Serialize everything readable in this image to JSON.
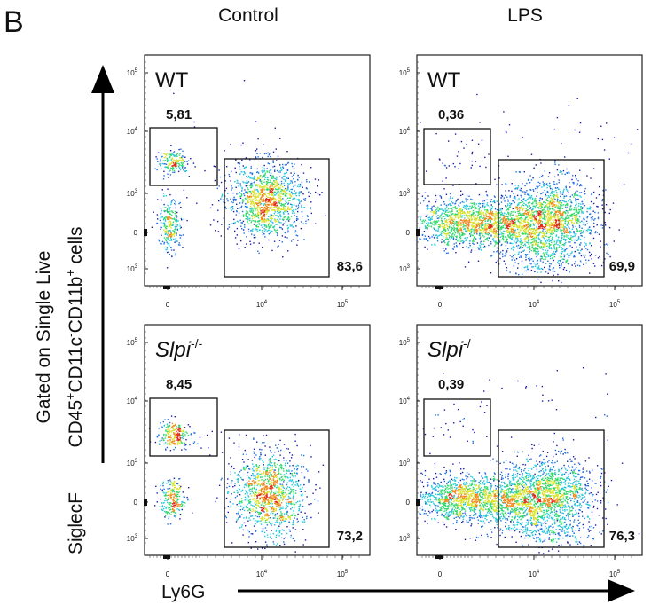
{
  "panel_letter": "B",
  "column_headers": [
    "Control",
    "LPS"
  ],
  "y_axis_label": {
    "line1": "Gated on Single Live",
    "line2_parts": [
      "CD45",
      "+",
      "CD11c",
      "-",
      "CD11b",
      "+",
      " cells"
    ],
    "marker": "SiglecF"
  },
  "x_axis_label": "Ly6G",
  "chart_data": {
    "type": "scatter",
    "subtype": "flow-cytometry-pseudocolor-dot-plot",
    "x_axis": {
      "label": "Ly6G",
      "scale": "biexponential",
      "ticks": [
        {
          "base": "0",
          "exp": ""
        },
        {
          "base": "10",
          "exp": "4"
        },
        {
          "base": "10",
          "exp": "5"
        }
      ]
    },
    "y_axis": {
      "label": "SiglecF",
      "scale": "biexponential",
      "ticks": [
        {
          "base": "10",
          "exp": "5"
        },
        {
          "base": "10",
          "exp": "4"
        },
        {
          "base": "10",
          "exp": "3"
        },
        {
          "base": "0",
          "exp": ""
        },
        {
          "base": "-10",
          "exp": "3"
        }
      ]
    },
    "color_scale": [
      "#1a1aa8",
      "#1e6fe0",
      "#21c7d8",
      "#2fd86a",
      "#d8e22a",
      "#f08a1c",
      "#e02a1a"
    ],
    "panels": [
      {
        "condition": "Control",
        "genotype": "WT",
        "genotype_sup": "",
        "gates": {
          "siglecf_high_ly6g_low": "5,81",
          "ly6g_high": "83,6"
        }
      },
      {
        "condition": "LPS",
        "genotype": "WT",
        "genotype_sup": "",
        "gates": {
          "siglecf_high_ly6g_low": "0,36",
          "ly6g_high": "69,9"
        }
      },
      {
        "condition": "Control",
        "genotype": "Slpi",
        "genotype_sup": "-/-",
        "gates": {
          "siglecf_high_ly6g_low": "8,45",
          "ly6g_high": "73,2"
        }
      },
      {
        "condition": "LPS",
        "genotype": "Slpi",
        "genotype_sup": "-/",
        "gates": {
          "siglecf_high_ly6g_low": "0,39",
          "ly6g_high": "76,3"
        }
      }
    ]
  }
}
